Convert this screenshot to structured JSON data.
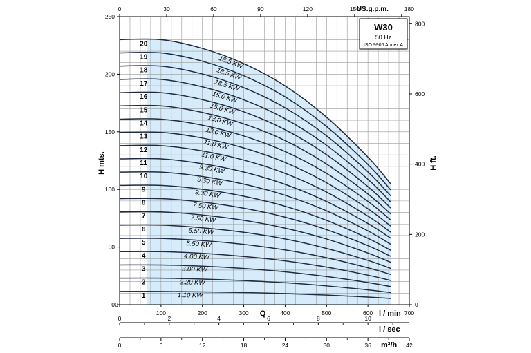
{
  "chart_data": {
    "type": "line",
    "x_unit": "l / min",
    "xlim": [
      0,
      700
    ],
    "ylim": [
      0,
      250
    ],
    "grid": true,
    "title": "W30",
    "subtitle_lines": [
      "50 Hz",
      "ISO 9906 Annex A"
    ],
    "left_axis": {
      "label": "H mts.",
      "ticks": [
        "0",
        "50",
        "100",
        "150",
        "200",
        "250"
      ]
    },
    "right_axis": {
      "label": "H ft.",
      "values": [
        0,
        200,
        400,
        600,
        800
      ],
      "ticks": [
        "0",
        "200",
        "400",
        "600",
        "800"
      ]
    },
    "top_axis": {
      "label": "US.g.p.m.",
      "values": [
        0,
        30,
        60,
        90,
        120,
        150,
        180
      ],
      "ticks": [
        "0",
        "30",
        "60",
        "90",
        "120",
        "150",
        "180"
      ]
    },
    "bottom_axes": [
      {
        "label": "l / min",
        "name": "Q",
        "values": [
          0,
          100,
          200,
          300,
          400,
          500,
          600,
          700
        ],
        "ticks": [
          "100",
          "200",
          "300",
          "400",
          "500",
          "600",
          "700"
        ]
      },
      {
        "label": "l / sec",
        "values": [
          0,
          2,
          4,
          6,
          8,
          10
        ],
        "ticks": [
          "0",
          "2",
          "4",
          "6",
          "8",
          "10"
        ]
      },
      {
        "label": "m³/h",
        "values": [
          0,
          6,
          12,
          18,
          24,
          30,
          36,
          42
        ],
        "ticks": [
          "0",
          "6",
          "12",
          "18",
          "24",
          "30",
          "36",
          "42"
        ]
      }
    ],
    "operating_range": [
      65,
      655
    ],
    "shading_color": "#d6ecfa",
    "curve_color": "#1f2a44",
    "x": [
      0,
      100,
      200,
      300,
      400,
      500,
      600,
      655
    ],
    "series": [
      {
        "stage": "1",
        "power": "1.10 KW",
        "values": [
          11.5,
          11.5,
          11.1,
          10.5,
          9.6,
          8.3,
          6.6,
          5.4
        ]
      },
      {
        "stage": "2",
        "power": "2.20 KW",
        "values": [
          23.0,
          23.0,
          22.2,
          20.9,
          19.0,
          16.3,
          12.8,
          10.5
        ]
      },
      {
        "stage": "3",
        "power": "3.00 KW",
        "values": [
          34.5,
          34.5,
          33.4,
          31.4,
          28.5,
          24.4,
          19.2,
          15.7
        ]
      },
      {
        "stage": "4",
        "power": "4.00 KW",
        "values": [
          46.0,
          46.0,
          44.5,
          41.8,
          38.0,
          32.6,
          25.6,
          21.0
        ]
      },
      {
        "stage": "5",
        "power": "5.50 KW",
        "values": [
          57.5,
          57.5,
          55.6,
          52.3,
          47.5,
          40.7,
          32.0,
          26.2
        ]
      },
      {
        "stage": "6",
        "power": "5.50 KW",
        "values": [
          69.0,
          69.0,
          66.7,
          62.8,
          57.0,
          48.8,
          38.4,
          31.5
        ]
      },
      {
        "stage": "7",
        "power": "7.50 KW",
        "values": [
          80.5,
          80.5,
          77.8,
          73.2,
          66.4,
          57.0,
          44.8,
          36.7
        ]
      },
      {
        "stage": "8",
        "power": "7.50 KW",
        "values": [
          92.0,
          92.0,
          89.0,
          83.7,
          75.9,
          65.1,
          51.2,
          42.0
        ]
      },
      {
        "stage": "9",
        "power": "9.30 KW",
        "values": [
          103.5,
          103.5,
          100.1,
          94.1,
          85.4,
          73.2,
          57.6,
          47.2
        ]
      },
      {
        "stage": "10",
        "power": "9.30 KW",
        "values": [
          115.0,
          115.0,
          111.2,
          104.6,
          94.9,
          81.4,
          64.0,
          52.4
        ]
      },
      {
        "stage": "11",
        "power": "9.30 KW",
        "values": [
          126.5,
          126.5,
          122.3,
          115.1,
          104.4,
          89.5,
          70.4,
          57.7
        ]
      },
      {
        "stage": "12",
        "power": "11.0 KW",
        "values": [
          138.0,
          138.0,
          133.4,
          125.5,
          113.9,
          97.7,
          76.8,
          62.9
        ]
      },
      {
        "stage": "13",
        "power": "11.0 KW",
        "values": [
          149.5,
          149.5,
          144.6,
          136.0,
          123.4,
          105.8,
          83.2,
          68.2
        ]
      },
      {
        "stage": "14",
        "power": "13.0 KW",
        "values": [
          161.0,
          161.0,
          155.7,
          146.4,
          132.9,
          113.9,
          89.6,
          73.4
        ]
      },
      {
        "stage": "15",
        "power": "13.0 KW",
        "values": [
          172.5,
          172.5,
          166.8,
          156.9,
          142.4,
          122.0,
          96.0,
          78.7
        ]
      },
      {
        "stage": "16",
        "power": "15.0 KW",
        "values": [
          184.0,
          184.0,
          177.9,
          167.4,
          151.8,
          130.2,
          102.4,
          83.9
        ]
      },
      {
        "stage": "17",
        "power": "15.0 KW",
        "values": [
          195.5,
          195.5,
          189.0,
          177.8,
          161.3,
          138.3,
          108.8,
          89.1
        ]
      },
      {
        "stage": "18",
        "power": "18.5 KW",
        "values": [
          207.0,
          207.0,
          200.2,
          188.3,
          170.8,
          146.5,
          115.2,
          94.4
        ]
      },
      {
        "stage": "19",
        "power": "18.5 KW",
        "values": [
          218.5,
          218.5,
          211.3,
          198.7,
          180.3,
          154.6,
          121.6,
          99.6
        ]
      },
      {
        "stage": "20",
        "power": "18.5 KW",
        "values": [
          230.0,
          230.0,
          222.4,
          209.2,
          189.8,
          162.7,
          128.0,
          104.9
        ]
      }
    ]
  }
}
